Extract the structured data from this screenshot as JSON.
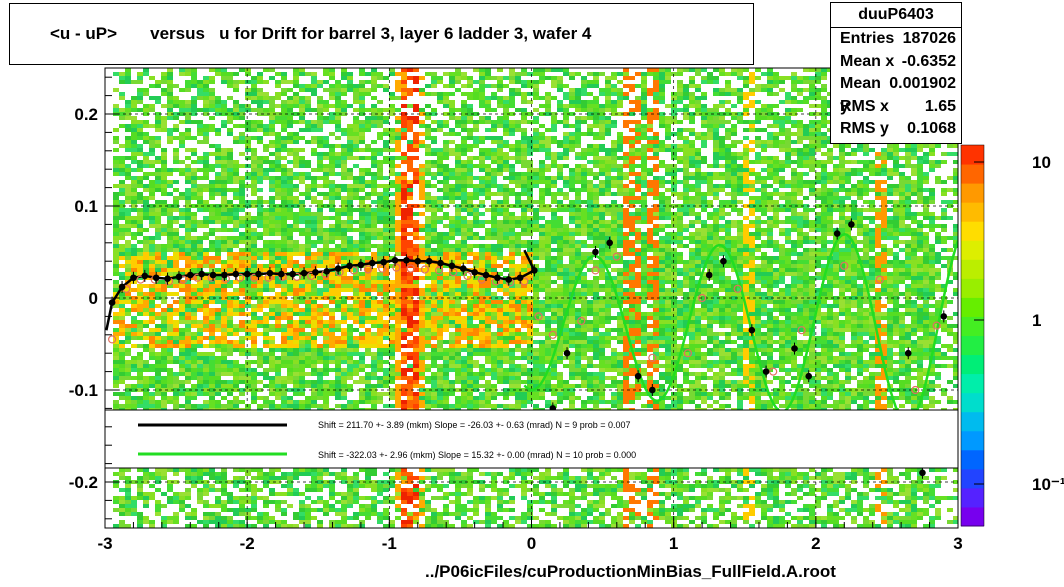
{
  "title": "<u - uP>       versus   u for Drift for barrel 3, layer 6 ladder 3, wafer 4",
  "x_label": "../P06icFiles/cuProductionMinBias_FullField.A.root",
  "stats": {
    "name": "duuP6403",
    "rows": [
      {
        "label": "Entries",
        "value": "187026"
      },
      {
        "label": "Mean x",
        "value": "-0.6352"
      },
      {
        "label": "Mean y",
        "value": "0.001902"
      },
      {
        "label": "RMS x",
        "value": "1.65"
      },
      {
        "label": "RMS y",
        "value": "0.1068"
      }
    ]
  },
  "legend": {
    "black": "Shift =   211.70 +- 3.89 (mkm) Slope =   -26.03 +- 0.63 (mrad)  N = 9 prob = 0.007",
    "green": "Shift =  -322.03 +- 2.96 (mkm) Slope =    15.32 +- 0.00 (mrad)  N = 10 prob = 0.000"
  },
  "colors": {
    "black_series": "#000000",
    "green_series": "#22dd22",
    "open_markers": "#e07060",
    "heat_base": "#55dd33"
  },
  "chart_data": {
    "type": "heatmap",
    "xlim": [
      -3,
      3
    ],
    "ylim": [
      -0.25,
      0.25
    ],
    "x_ticks": [
      -3,
      -2,
      -1,
      0,
      1,
      2,
      3
    ],
    "y_ticks": [
      -0.2,
      -0.1,
      0,
      0.1,
      0.2
    ],
    "x_tick_labels": [
      "-3",
      "-2",
      "-1",
      "0",
      "1",
      "2",
      "3"
    ],
    "y_tick_labels": [
      "-0.2",
      "-0.1",
      "0",
      "0.1",
      "0.2"
    ],
    "z_scale": "log",
    "z_tick_labels": [
      "10",
      "1",
      "10⁻¹"
    ],
    "grid": true,
    "series": [
      {
        "x": [
          -2.95,
          -2.88,
          -2.8,
          -2.72,
          -2.64,
          -2.56,
          -2.48,
          -2.4,
          -2.32,
          -2.24,
          -2.16,
          -2.08,
          -2.0,
          -1.92,
          -1.84,
          -1.76,
          -1.68,
          -1.6,
          -1.52,
          -1.44,
          -1.36,
          -1.28,
          -1.2,
          -1.12,
          -1.04,
          -0.96,
          -0.88,
          -0.8,
          -0.72,
          -0.64,
          -0.56,
          -0.48,
          -0.4,
          -0.32,
          -0.24,
          -0.16,
          -0.08,
          0.02,
          0.15,
          0.25,
          0.45,
          0.55,
          0.75,
          0.85,
          1.25,
          1.35,
          1.55,
          1.65,
          1.85,
          1.95,
          2.15,
          2.25,
          2.65,
          2.75,
          2.9
        ],
        "y": [
          -0.005,
          0.012,
          0.022,
          0.024,
          0.022,
          0.021,
          0.023,
          0.025,
          0.026,
          0.025,
          0.025,
          0.026,
          0.026,
          0.026,
          0.027,
          0.026,
          0.026,
          0.027,
          0.028,
          0.029,
          0.032,
          0.035,
          0.036,
          0.038,
          0.039,
          0.041,
          0.041,
          0.04,
          0.04,
          0.038,
          0.035,
          0.032,
          0.028,
          0.025,
          0.022,
          0.02,
          0.022,
          0.03,
          -0.12,
          -0.06,
          0.05,
          0.06,
          -0.085,
          -0.1,
          0.025,
          0.04,
          -0.035,
          -0.08,
          -0.055,
          -0.085,
          0.07,
          0.08,
          -0.06,
          -0.19,
          -0.02
        ]
      },
      {
        "x": [
          -2.95,
          -2.85,
          -2.75,
          -2.65,
          -2.55,
          -2.45,
          -2.35,
          -2.25,
          -2.15,
          -2.05,
          -1.95,
          -1.85,
          -1.75,
          -1.65,
          -1.55,
          -1.45,
          -1.35,
          -1.25,
          -1.15,
          -1.05,
          -0.95,
          -0.85,
          -0.75,
          -0.65,
          -0.55,
          -0.45,
          -0.35,
          -0.25,
          -0.15,
          -0.05,
          0.05,
          0.15,
          0.35,
          0.45,
          0.6,
          0.85,
          1.1,
          1.2,
          1.45,
          1.7,
          1.9,
          2.2,
          2.45,
          2.7,
          2.85
        ],
        "y": [
          -0.045,
          0.01,
          0.02,
          0.02,
          0.018,
          0.02,
          0.022,
          0.022,
          0.021,
          0.022,
          0.022,
          0.022,
          0.023,
          0.023,
          0.024,
          0.026,
          0.028,
          0.03,
          0.031,
          0.032,
          0.033,
          0.032,
          0.031,
          0.03,
          0.028,
          0.024,
          0.02,
          0.018,
          0.017,
          0.018,
          -0.02,
          -0.04,
          -0.025,
          0.03,
          0.045,
          -0.065,
          -0.06,
          0.0,
          0.01,
          -0.08,
          -0.035,
          0.035,
          0.02,
          -0.1,
          -0.03
        ]
      }
    ]
  }
}
